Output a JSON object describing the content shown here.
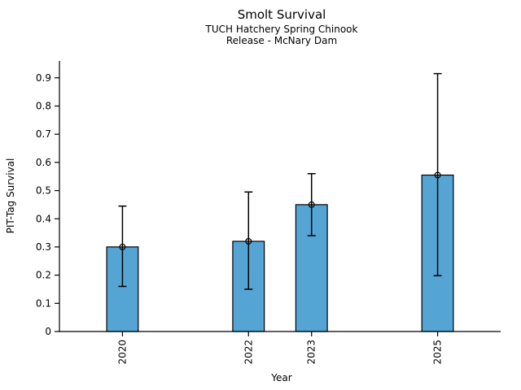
{
  "chart_data": {
    "type": "bar",
    "title": "Smolt Survival",
    "subtitle_lines": [
      "TUCH Hatchery Spring Chinook",
      "Release - McNary Dam"
    ],
    "xlabel": "Year",
    "ylabel": "PIT-Tag Survival",
    "categories": [
      2020,
      2022,
      2023,
      2025
    ],
    "xtick_labels": [
      "2020",
      "2022",
      "2023",
      "2025"
    ],
    "values": [
      0.3,
      0.32,
      0.45,
      0.555
    ],
    "error_low": [
      0.16,
      0.15,
      0.34,
      0.198
    ],
    "error_high": [
      0.445,
      0.495,
      0.56,
      0.915
    ],
    "bar_width_years": 0.5,
    "xlim": [
      2019,
      2026
    ],
    "ylim": [
      0,
      0.96
    ],
    "yticks": [
      0,
      0.1,
      0.2,
      0.3,
      0.4,
      0.5,
      0.6,
      0.7,
      0.8,
      0.9
    ],
    "ytick_labels": [
      "0",
      "0.1",
      "0.2",
      "0.3",
      "0.4",
      "0.5",
      "0.6",
      "0.7",
      "0.8",
      "0.9"
    ],
    "grid": false,
    "legend_position": "none",
    "marker": "open-circle",
    "colors": {
      "bar_fill": "#55A5D4",
      "bar_edge": "#000000",
      "error_bar": "#000000",
      "axis": "#000000",
      "text": "#000000",
      "background": "#ffffff"
    }
  }
}
